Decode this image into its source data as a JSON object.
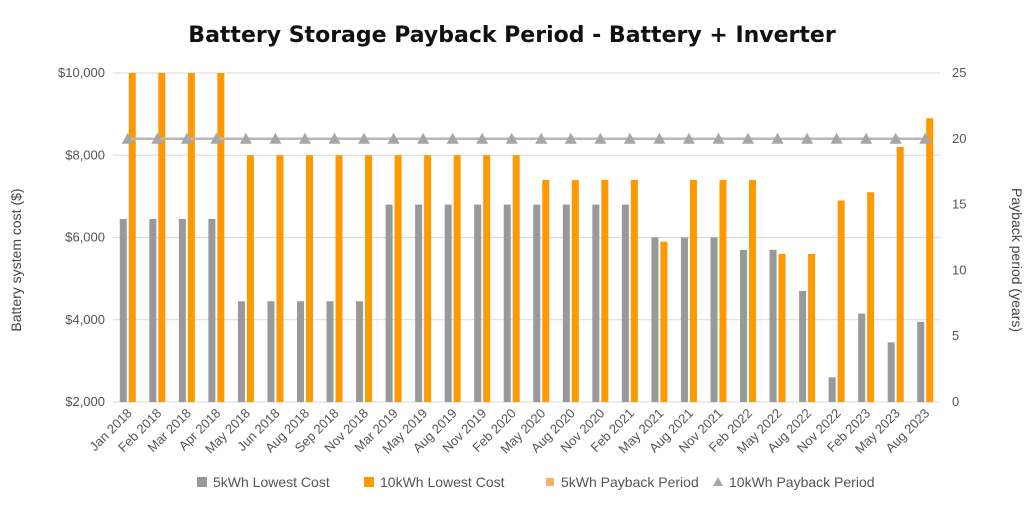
{
  "chart_data": {
    "type": "bar",
    "title": "Battery Storage Payback Period - Battery + Inverter",
    "ylabel": "Battery system cost ($)",
    "y2label": "Payback period (years)",
    "ylim": [
      2000,
      10000
    ],
    "y2lim": [
      0,
      25
    ],
    "yticks": [
      "$2,000",
      "$4,000",
      "$6,000",
      "$8,000",
      "$10,000"
    ],
    "y2ticks": [
      "0",
      "5",
      "10",
      "15",
      "20",
      "25"
    ],
    "grid": true,
    "legend_position": "bottom",
    "categories": [
      "Jan 2018",
      "Feb 2018",
      "Mar 2018",
      "Apr 2018",
      "May 2018",
      "Jun 2018",
      "Aug 2018",
      "Sep 2018",
      "Nov 2018",
      "Mar 2019",
      "May 2019",
      "Aug 2019",
      "Nov 2019",
      "Feb 2020",
      "May 2020",
      "Aug 2020",
      "Nov 2020",
      "Feb 2021",
      "May 2021",
      "Aug 2021",
      "Nov 2021",
      "Feb 2022",
      "May 2022",
      "Aug 2022",
      "Nov 2022",
      "Feb 2023",
      "May 2023",
      "Aug 2023"
    ],
    "series": [
      {
        "name": "5kWh Lowest Cost",
        "kind": "bar",
        "axis": "left",
        "color": "#999999",
        "values": [
          6450,
          6450,
          6450,
          6450,
          4450,
          4450,
          4450,
          4450,
          4450,
          6800,
          6800,
          6800,
          6800,
          6800,
          6800,
          6800,
          6800,
          6800,
          6000,
          6000,
          6000,
          5700,
          5700,
          4700,
          2600,
          4150,
          3450,
          3950
        ]
      },
      {
        "name": "10kWh Lowest Cost",
        "kind": "bar",
        "axis": "left",
        "color": "#ff9900",
        "values": [
          10000,
          10000,
          10000,
          10000,
          8000,
          8000,
          8000,
          8000,
          8000,
          8000,
          8000,
          8000,
          8000,
          8000,
          7400,
          7400,
          7400,
          7400,
          5900,
          7400,
          7400,
          7400,
          5600,
          5600,
          6900,
          7100,
          8200,
          8900
        ]
      },
      {
        "name": "5kWh Payback Period",
        "kind": "line",
        "axis": "right",
        "color": "#f6b26b",
        "values": [
          20,
          20,
          20,
          20,
          20,
          20,
          20,
          20,
          20,
          20,
          20,
          20,
          20,
          20,
          20,
          20,
          20,
          20,
          20,
          20,
          20,
          20,
          20,
          20,
          20,
          20,
          20,
          20
        ]
      },
      {
        "name": "10kWh Payback Period",
        "kind": "line",
        "axis": "right",
        "color": "#b7b7b7",
        "marker": "triangle",
        "values": [
          20,
          20,
          20,
          20,
          20,
          20,
          20,
          20,
          20,
          20,
          20,
          20,
          20,
          20,
          20,
          20,
          20,
          20,
          20,
          20,
          20,
          20,
          20,
          20,
          20,
          20,
          20,
          20
        ]
      }
    ]
  },
  "colors": {
    "grid": "#d9d9d9",
    "legend_marker_5kwh_payback": "#f6b26b",
    "legend_marker_10kwh_payback": "#a6a6a6"
  }
}
